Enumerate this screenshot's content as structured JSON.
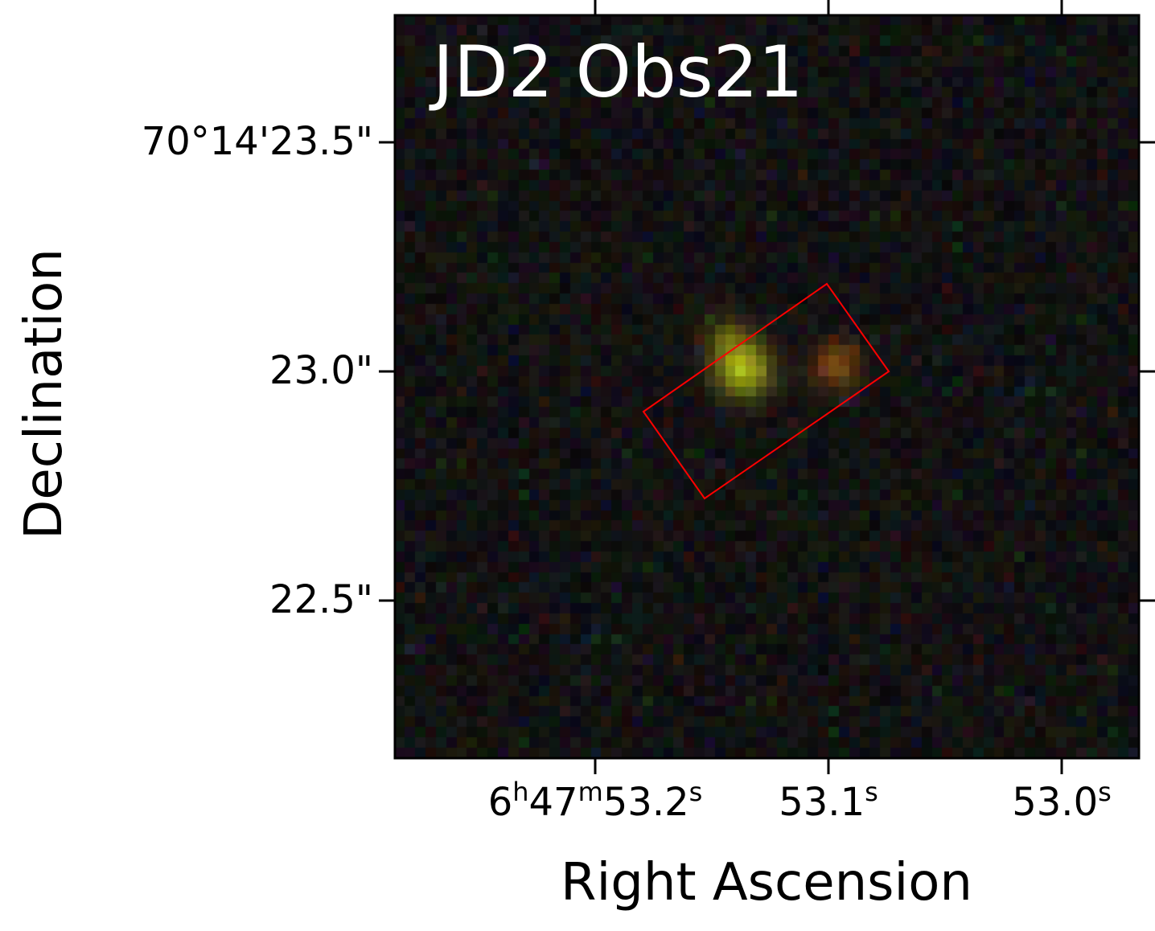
{
  "figure": {
    "panel_label": "JD2 Obs21",
    "xlabel": "Right Ascension",
    "ylabel": "Declination",
    "y_ticks": [
      "70°14'23.5\"",
      "23.0\"",
      "22.5\""
    ],
    "x_ticks": [
      {
        "h": "6",
        "h_unit": "h",
        "m": "47",
        "m_unit": "m",
        "s": "53.2",
        "s_unit": "s"
      },
      {
        "s": "53.1",
        "s_unit": "s"
      },
      {
        "s": "53.0",
        "s_unit": "s"
      }
    ],
    "aperture_color": "#ff0000",
    "background_color": "#131313"
  }
}
